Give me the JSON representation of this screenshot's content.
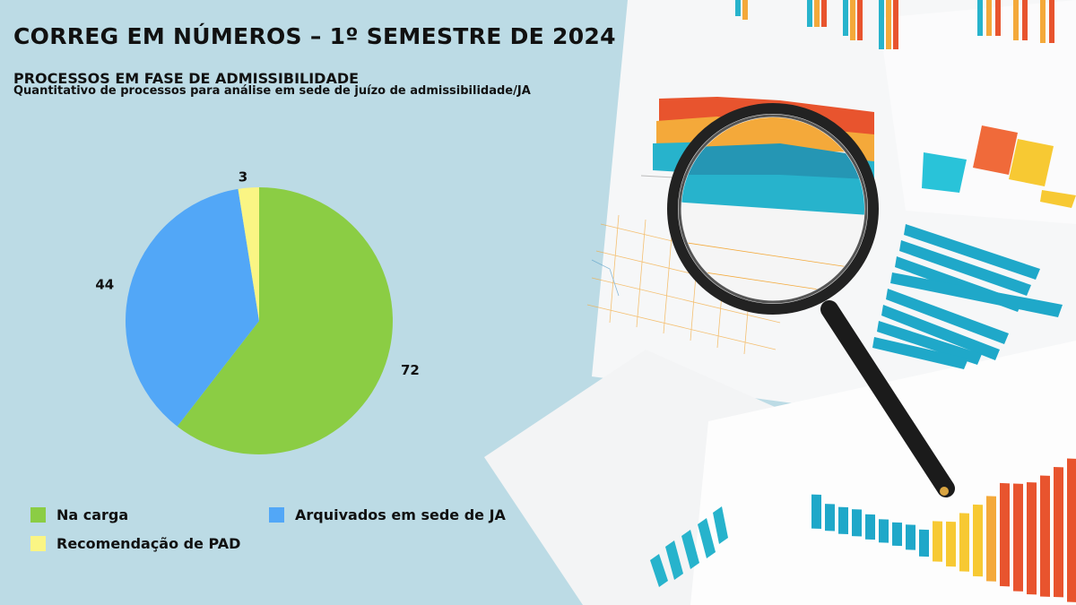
{
  "header": {
    "title": "CORREG EM NÚMEROS – 1º SEMESTRE DE 2024",
    "subtitle": "PROCESSOS EM FASE DE ADMISSIBILIDADE",
    "caption": "Quantitativo de processos para análise em sede de juízo de admissibilidade/JA"
  },
  "chart_data": {
    "type": "pie",
    "title": "PROCESSOS EM FASE DE ADMISSIBILIDADE",
    "subtitle": "Quantitativo de processos para análise em sede de juízo de admissibilidade/JA",
    "categories": [
      "Na carga",
      "Arquivados em sede de JA",
      "Recomendação de PAD"
    ],
    "values": [
      72,
      44,
      3
    ],
    "colors": [
      "#8bcd44",
      "#52a7f7",
      "#faf584"
    ],
    "legend_position": "bottom",
    "data_labels": [
      "72",
      "44",
      "3"
    ]
  },
  "legend": [
    {
      "label": "Na carga",
      "color": "#8bcd44"
    },
    {
      "label": "Arquivados em sede de JA",
      "color": "#52a7f7"
    },
    {
      "label": "Recomendação de PAD",
      "color": "#faf584"
    }
  ],
  "background_photo": {
    "description_icon": "magnifying-glass-over-charts",
    "accent_colors": [
      "#27b3cc",
      "#f4a93a",
      "#e8542e",
      "#f7c933"
    ]
  }
}
